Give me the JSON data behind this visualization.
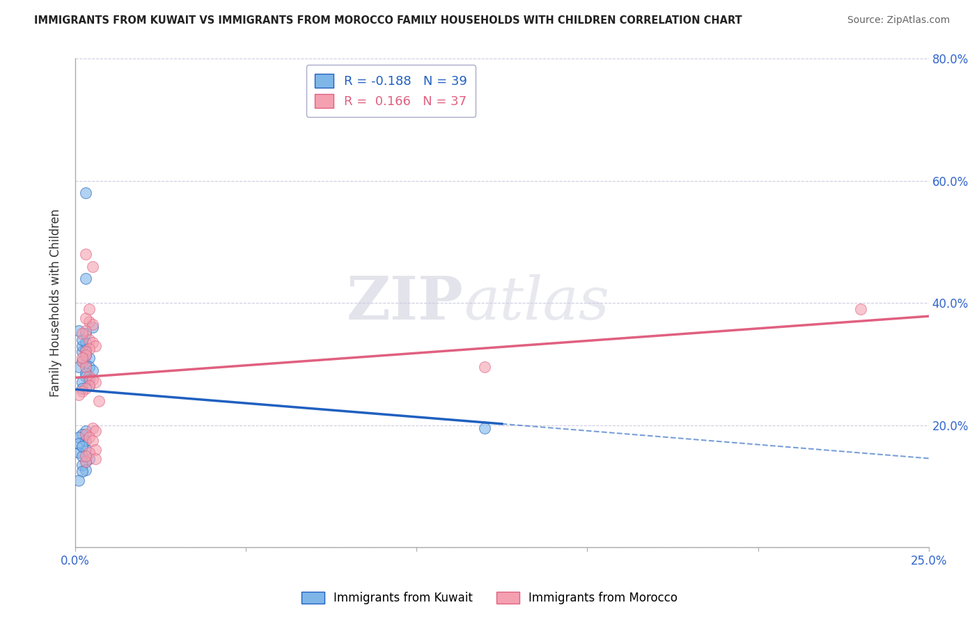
{
  "title": "IMMIGRANTS FROM KUWAIT VS IMMIGRANTS FROM MOROCCO FAMILY HOUSEHOLDS WITH CHILDREN CORRELATION CHART",
  "source": "Source: ZipAtlas.com",
  "ylabel": "Family Households with Children",
  "legend_label_blue": "Immigrants from Kuwait",
  "legend_label_pink": "Immigrants from Morocco",
  "R_blue": -0.188,
  "N_blue": 39,
  "R_pink": 0.166,
  "N_pink": 37,
  "xlim": [
    0.0,
    0.25
  ],
  "ylim": [
    0.0,
    0.8
  ],
  "color_blue": "#7EB6E8",
  "color_pink": "#F4A0B0",
  "line_color_blue": "#2060C0",
  "line_color_pink": "#E06080",
  "watermark_zip": "ZIP",
  "watermark_atlas": "atlas",
  "background_color": "#FFFFFF",
  "kuwait_x": [
    0.002,
    0.003,
    0.001,
    0.004,
    0.003,
    0.002,
    0.003,
    0.004,
    0.005,
    0.003,
    0.002,
    0.003,
    0.002,
    0.003,
    0.004,
    0.002,
    0.003,
    0.001,
    0.004,
    0.005,
    0.003,
    0.002,
    0.004,
    0.003,
    0.002,
    0.003,
    0.001,
    0.002,
    0.003,
    0.002,
    0.001,
    0.003,
    0.001,
    0.002,
    0.003,
    0.12,
    0.003,
    0.002,
    0.001
  ],
  "kuwait_y": [
    0.305,
    0.3,
    0.295,
    0.31,
    0.315,
    0.32,
    0.325,
    0.295,
    0.29,
    0.285,
    0.33,
    0.335,
    0.34,
    0.28,
    0.275,
    0.27,
    0.35,
    0.355,
    0.265,
    0.36,
    0.44,
    0.26,
    0.145,
    0.14,
    0.135,
    0.16,
    0.155,
    0.15,
    0.19,
    0.185,
    0.18,
    0.175,
    0.17,
    0.165,
    0.127,
    0.195,
    0.58,
    0.125,
    0.11
  ],
  "morocco_x": [
    0.002,
    0.003,
    0.004,
    0.005,
    0.003,
    0.004,
    0.005,
    0.006,
    0.004,
    0.003,
    0.005,
    0.003,
    0.12,
    0.002,
    0.003,
    0.004,
    0.005,
    0.006,
    0.004,
    0.003,
    0.002,
    0.001,
    0.005,
    0.006,
    0.003,
    0.004,
    0.005,
    0.006,
    0.007,
    0.003,
    0.002,
    0.004,
    0.006,
    0.003,
    0.004,
    0.23,
    0.003
  ],
  "morocco_y": [
    0.305,
    0.295,
    0.37,
    0.365,
    0.355,
    0.34,
    0.335,
    0.33,
    0.325,
    0.32,
    0.46,
    0.315,
    0.295,
    0.31,
    0.375,
    0.28,
    0.275,
    0.27,
    0.265,
    0.26,
    0.255,
    0.25,
    0.195,
    0.19,
    0.185,
    0.18,
    0.175,
    0.16,
    0.24,
    0.48,
    0.35,
    0.155,
    0.145,
    0.14,
    0.39,
    0.39,
    0.15
  ]
}
